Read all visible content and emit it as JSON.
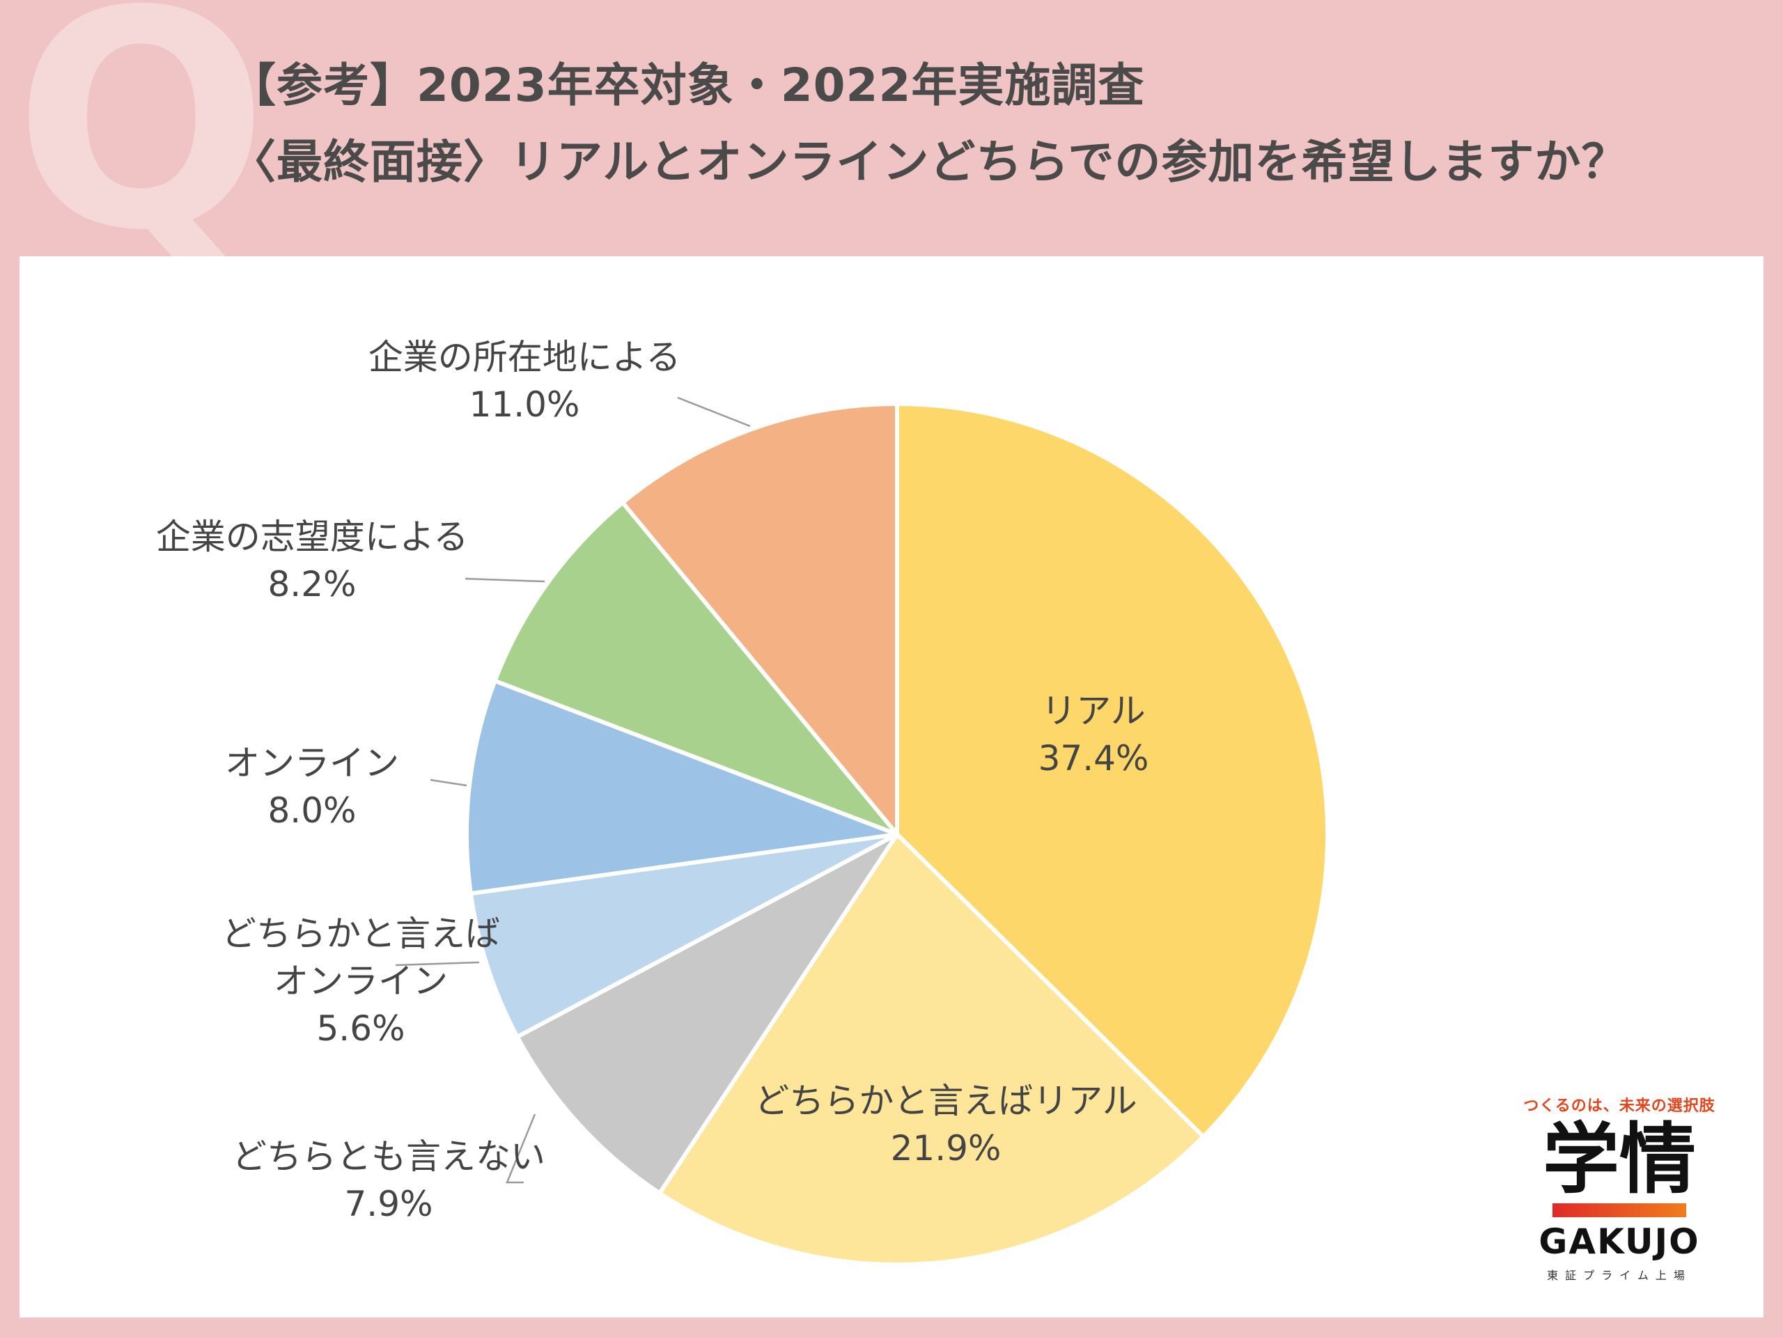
{
  "header": {
    "q_mark": "Q",
    "title_line1": "【参考】2023年卒対象・2022年実施調査",
    "title_line2": "〈最終面接〉リアルとオンラインどちらでの参加を希望しますか？"
  },
  "logo": {
    "tagline": "つくるのは、未来の選択肢",
    "kanji": "学情",
    "en": "GAKUJO",
    "sub": "東証プライム上場"
  },
  "chart_data": {
    "type": "pie",
    "title": "〈最終面接〉リアルとオンラインどちらでの参加を希望しますか？",
    "slices": [
      {
        "label": [
          "リアル"
        ],
        "value": 37.4,
        "display": "37.4%",
        "color": "#fdd769"
      },
      {
        "label": [
          "どちらかと言えばリアル"
        ],
        "value": 21.9,
        "display": "21.9%",
        "color": "#fde69a"
      },
      {
        "label": [
          "どちらとも言えない"
        ],
        "value": 7.9,
        "display": "7.9%",
        "color": "#c8c8c8"
      },
      {
        "label": [
          "どちらかと言えば",
          "オンライン"
        ],
        "value": 5.6,
        "display": "5.6%",
        "color": "#bcd6ee"
      },
      {
        "label": [
          "オンライン"
        ],
        "value": 8.0,
        "display": "8.0%",
        "color": "#9cc2e5"
      },
      {
        "label": [
          "企業の志望度による"
        ],
        "value": 8.2,
        "display": "8.2%",
        "color": "#a9d18e"
      },
      {
        "label": [
          "企業の所在地による"
        ],
        "value": 11.0,
        "display": "11.0%",
        "color": "#f4b183"
      }
    ],
    "start": "12 o'clock",
    "direction": "clockwise"
  }
}
